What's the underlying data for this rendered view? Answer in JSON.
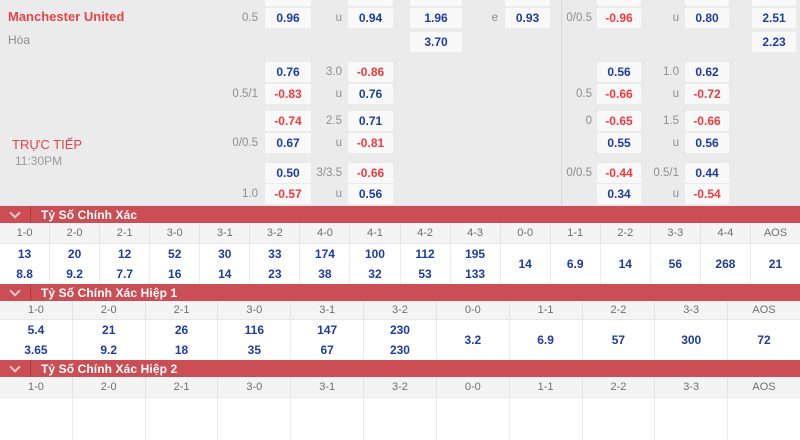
{
  "match": {
    "home_team": "Manchester United",
    "draw_label": "Hòa",
    "live_label": "TRỰC TIẾP",
    "time": "11:30PM"
  },
  "colors": {
    "section_header_red": "#ca4e53",
    "odds_positive_blue": "#1d3d9c",
    "odds_negative_red": "#f0383e",
    "team_name_red": "#e2454a",
    "odds_background": "#ebebeb"
  },
  "odds": {
    "rows": [
      {
        "l1": "0.5",
        "v1": "0.96",
        "l2": "u",
        "v2": "0.94",
        "v3": "1.96",
        "l3": "e",
        "v4": "0.93",
        "r1": "0/0.5",
        "v5": "-0.96",
        "r2": "u",
        "v6": "0.80",
        "v7": "2.51"
      },
      {
        "v3": "3.70",
        "v7": "2.23"
      },
      {
        "v1": "0.76",
        "l2": "3.0",
        "v2": "-0.86",
        "v5": "0.56",
        "r2": "1.0",
        "v6": "0.62"
      },
      {
        "l1": "0.5/1",
        "v1": "-0.83",
        "l2": "u",
        "v2": "0.76",
        "r1": "0.5",
        "v5": "-0.66",
        "r2": "u",
        "v6": "-0.72"
      },
      {
        "v1": "-0.74",
        "l2": "2.5",
        "v2": "0.71",
        "r1": "0",
        "v5": "-0.65",
        "r2": "1.5",
        "v6": "-0.66"
      },
      {
        "l1": "0/0.5",
        "v1": "0.67",
        "l2": "u",
        "v2": "-0.81",
        "v5": "0.55",
        "r2": "u",
        "v6": "0.56"
      },
      {
        "v1": "0.50",
        "l2": "3/3.5",
        "v2": "-0.66",
        "r1": "0/0.5",
        "v5": "-0.44",
        "r2": "0.5/1",
        "v6": "0.44"
      },
      {
        "l1": "1.0",
        "v1": "-0.57",
        "l2": "u",
        "v2": "0.56",
        "v5": "0.34",
        "r2": "u",
        "v6": "-0.54"
      }
    ]
  },
  "tables": [
    {
      "title": "Tỷ Số Chính Xác",
      "columns": [
        {
          "label": "1-0",
          "values": [
            "13",
            "8.8"
          ]
        },
        {
          "label": "2-0",
          "values": [
            "20",
            "9.2"
          ]
        },
        {
          "label": "2-1",
          "values": [
            "12",
            "7.7"
          ]
        },
        {
          "label": "3-0",
          "values": [
            "52",
            "16"
          ]
        },
        {
          "label": "3-1",
          "values": [
            "30",
            "14"
          ]
        },
        {
          "label": "3-2",
          "values": [
            "33",
            "23"
          ]
        },
        {
          "label": "4-0",
          "values": [
            "174",
            "38"
          ]
        },
        {
          "label": "4-1",
          "values": [
            "100",
            "32"
          ]
        },
        {
          "label": "4-2",
          "values": [
            "112",
            "53"
          ]
        },
        {
          "label": "4-3",
          "values": [
            "195",
            "133"
          ]
        },
        {
          "label": "0-0",
          "values": [
            "14"
          ]
        },
        {
          "label": "1-1",
          "values": [
            "6.9"
          ]
        },
        {
          "label": "2-2",
          "values": [
            "14"
          ]
        },
        {
          "label": "3-3",
          "values": [
            "56"
          ]
        },
        {
          "label": "4-4",
          "values": [
            "268"
          ]
        },
        {
          "label": "AOS",
          "values": [
            "21"
          ]
        }
      ]
    },
    {
      "title": "Tỷ Số Chính Xác Hiệp 1",
      "columns": [
        {
          "label": "1-0",
          "values": [
            "5.4",
            "3.65"
          ]
        },
        {
          "label": "2-0",
          "values": [
            "21",
            "9.2"
          ]
        },
        {
          "label": "2-1",
          "values": [
            "26",
            "18"
          ]
        },
        {
          "label": "3-0",
          "values": [
            "116",
            "35"
          ]
        },
        {
          "label": "3-1",
          "values": [
            "147",
            "67"
          ]
        },
        {
          "label": "3-2",
          "values": [
            "230",
            "230"
          ]
        },
        {
          "label": "0-0",
          "values": [
            "3.2"
          ]
        },
        {
          "label": "1-1",
          "values": [
            "6.9"
          ]
        },
        {
          "label": "2-2",
          "values": [
            "57"
          ]
        },
        {
          "label": "3-3",
          "values": [
            "300"
          ]
        },
        {
          "label": "AOS",
          "values": [
            "72"
          ]
        }
      ]
    },
    {
      "title": "Tỷ Số Chính Xác Hiệp 2",
      "columns": [
        {
          "label": "1-0",
          "values": []
        },
        {
          "label": "2-0",
          "values": []
        },
        {
          "label": "2-1",
          "values": []
        },
        {
          "label": "3-0",
          "values": []
        },
        {
          "label": "3-1",
          "values": []
        },
        {
          "label": "3-2",
          "values": []
        },
        {
          "label": "0-0",
          "values": []
        },
        {
          "label": "1-1",
          "values": []
        },
        {
          "label": "2-2",
          "values": []
        },
        {
          "label": "3-3",
          "values": []
        },
        {
          "label": "AOS",
          "values": []
        }
      ]
    }
  ]
}
